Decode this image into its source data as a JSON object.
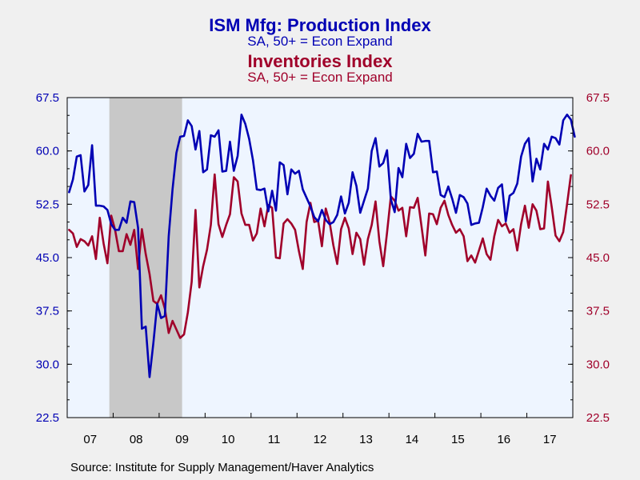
{
  "chart_data": {
    "type": "line",
    "titles": [
      {
        "text": "ISM Mfg: Production Index",
        "color": "#0000b4"
      },
      {
        "text": "SA, 50+ = Econ Expand",
        "color": "#0000b4"
      },
      {
        "text": "Inventories Index",
        "color": "#a0002a"
      },
      {
        "text": "SA, 50+ = Econ Expand",
        "color": "#a0002a"
      }
    ],
    "x_tick_labels": [
      "07",
      "08",
      "09",
      "10",
      "11",
      "12",
      "13",
      "14",
      "15",
      "16",
      "17"
    ],
    "x_range": [
      "2007-01",
      "2017-12"
    ],
    "ylim": [
      22.5,
      67.5
    ],
    "y_ticks": [
      "67.5",
      "60.0",
      "52.5",
      "45.0",
      "37.5",
      "30.0",
      "22.5"
    ],
    "recession_shading": {
      "start": "2007-12",
      "end": "2009-06",
      "color": "#c8c8c8"
    },
    "plot_background": "#eef5ff",
    "series": [
      {
        "name": "ISM Mfg: Production Index",
        "color": "#0000b4",
        "axis": "left",
        "start": "2007-01",
        "values": [
          54.2,
          56.0,
          59.2,
          59.4,
          54.3,
          55.2,
          60.8,
          52.3,
          52.3,
          52.2,
          51.7,
          49.7,
          48.9,
          48.9,
          50.6,
          49.9,
          52.9,
          52.8,
          49.2,
          35.0,
          35.3,
          28.2,
          33.0,
          38.5,
          36.5,
          36.8,
          48.0,
          54.6,
          59.7,
          62.0,
          62.1,
          64.3,
          63.5,
          60.2,
          62.8,
          57.0,
          57.4,
          62.2,
          62.0,
          62.9,
          57.1,
          57.2,
          61.3,
          57.2,
          59.3,
          65.1,
          63.8,
          61.7,
          58.7,
          54.6,
          54.5,
          54.7,
          51.5,
          54.4,
          51.6,
          58.4,
          58.0,
          53.9,
          57.4,
          56.8,
          57.2,
          54.6,
          53.4,
          52.2,
          50.7,
          50.1,
          51.7,
          50.3,
          49.7,
          50.0,
          51.0,
          53.6,
          51.2,
          52.7,
          57.0,
          55.1,
          51.3,
          53.0,
          54.7,
          60.0,
          61.8,
          57.8,
          58.3,
          60.1,
          53.2,
          51.4,
          57.6,
          56.3,
          61.0,
          59.0,
          59.6,
          62.4,
          61.3,
          61.4,
          61.4,
          57.0,
          57.1,
          53.8,
          53.5,
          55.0,
          53.3,
          51.3,
          53.8,
          53.5,
          52.6,
          49.6,
          49.8,
          49.9,
          52.1,
          54.7,
          53.7,
          53.0,
          54.8,
          55.3,
          50.1,
          53.7,
          54.1,
          55.4,
          59.2,
          61.0,
          61.8,
          55.7,
          58.9,
          57.4,
          61.0,
          60.2,
          62.0,
          61.8,
          60.9,
          64.3,
          65.1,
          64.4,
          62.0
        ]
      },
      {
        "name": "Inventories Index",
        "color": "#a0002a",
        "axis": "right",
        "start": "2007-01",
        "values": [
          48.9,
          48.4,
          46.5,
          47.6,
          47.3,
          46.7,
          48.0,
          44.8,
          50.6,
          47.0,
          44.2,
          50.9,
          48.9,
          45.9,
          45.9,
          48.3,
          46.8,
          48.9,
          43.4,
          49.0,
          45.5,
          42.7,
          38.9,
          38.5,
          39.7,
          37.8,
          34.4,
          36.1,
          34.9,
          33.7,
          34.2,
          37.3,
          41.6,
          51.7,
          40.8,
          43.8,
          46.1,
          49.6,
          56.7,
          49.7,
          47.9,
          49.6,
          51.1,
          56.3,
          55.7,
          51.2,
          49.6,
          49.6,
          47.4,
          48.4,
          51.9,
          49.4,
          52.4,
          52.0,
          45.0,
          44.9,
          49.8,
          50.4,
          49.8,
          48.9,
          45.9,
          43.4,
          50.0,
          52.7,
          50.0,
          50.2,
          46.6,
          51.9,
          50.0,
          46.7,
          44.1,
          49.0,
          50.6,
          49.1,
          45.5,
          48.5,
          47.6,
          44.0,
          47.6,
          49.6,
          52.9,
          47.3,
          43.8,
          48.5,
          53.6,
          53.0,
          51.6,
          52.0,
          48.0,
          52.1,
          52.0,
          53.4,
          49.4,
          45.3,
          51.2,
          51.1,
          49.7,
          52.0,
          53.0,
          51.0,
          49.6,
          48.5,
          49.0,
          48.0,
          44.5,
          45.3,
          44.3,
          46.0,
          47.7,
          45.5,
          44.7,
          48.0,
          50.3,
          49.4,
          49.8,
          48.5,
          49.0,
          46.0,
          49.7,
          52.3,
          49.2,
          52.5,
          51.6,
          49.0,
          49.1,
          55.7,
          52.1,
          48.1,
          47.3,
          48.6,
          52.5,
          56.6
        ]
      }
    ],
    "source": "Source:  Institute for Supply Management/Haver Analytics"
  }
}
